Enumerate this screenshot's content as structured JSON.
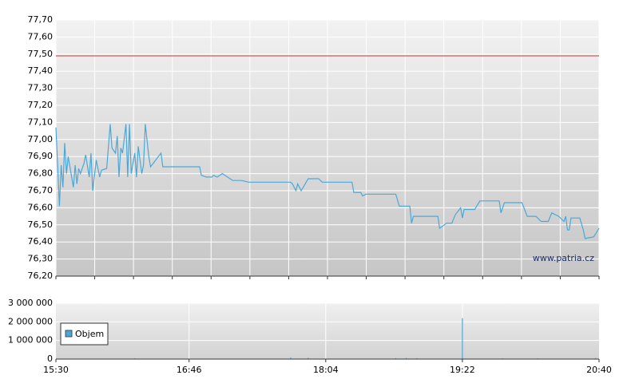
{
  "chart_data": [
    {
      "type": "line",
      "color": "#4aa8d8",
      "grid": true,
      "xlim": [
        "15:30",
        "20:40"
      ],
      "ylim": [
        76.2,
        77.7
      ],
      "yticks": [
        {
          "value": 76.2,
          "label": "76,20"
        },
        {
          "value": 76.3,
          "label": "76,30"
        },
        {
          "value": 76.4,
          "label": "76,40"
        },
        {
          "value": 76.5,
          "label": "76,50"
        },
        {
          "value": 76.6,
          "label": "76,60"
        },
        {
          "value": 76.7,
          "label": "76,70"
        },
        {
          "value": 76.8,
          "label": "76,80"
        },
        {
          "value": 76.9,
          "label": "76,90"
        },
        {
          "value": 77.0,
          "label": "77,00"
        },
        {
          "value": 77.1,
          "label": "77,10"
        },
        {
          "value": 77.2,
          "label": "77,20"
        },
        {
          "value": 77.3,
          "label": "77,30"
        },
        {
          "value": 77.4,
          "label": "77,40"
        },
        {
          "value": 77.5,
          "label": "77,50"
        },
        {
          "value": 77.6,
          "label": "77,60"
        },
        {
          "value": 77.7,
          "label": "77,70"
        }
      ],
      "reference_line": {
        "value": 77.49,
        "color": "#cc3333"
      },
      "watermark": "www.patria.cz",
      "x": [
        "15:30",
        "15:31",
        "15:32",
        "15:33",
        "15:34",
        "15:35",
        "15:36",
        "15:37",
        "15:39",
        "15:40",
        "15:41",
        "15:42",
        "15:43",
        "15:44",
        "15:46",
        "15:47",
        "15:49",
        "15:50",
        "15:51",
        "15:53",
        "15:55",
        "15:56",
        "15:59",
        "16:01",
        "16:02",
        "16:04",
        "16:05",
        "16:06",
        "16:07",
        "16:08",
        "16:10",
        "16:11",
        "16:12",
        "16:13",
        "16:15",
        "16:16",
        "16:17",
        "16:19",
        "16:20",
        "16:21",
        "16:23",
        "16:24",
        "16:27",
        "16:30",
        "16:31",
        "16:52",
        "16:53",
        "16:56",
        "16:59",
        "17:00",
        "17:02",
        "17:05",
        "17:11",
        "17:16",
        "17:20",
        "17:44",
        "17:45",
        "17:47",
        "17:48",
        "17:50",
        "17:54",
        "18:00",
        "18:02",
        "18:19",
        "18:20",
        "18:24",
        "18:25",
        "18:27",
        "18:44",
        "18:46",
        "18:52",
        "18:53",
        "18:54",
        "19:08",
        "19:09",
        "19:13",
        "19:16",
        "19:18",
        "19:21",
        "19:22",
        "19:23",
        "19:29",
        "19:32",
        "19:43",
        "19:44",
        "19:46",
        "19:56",
        "19:59",
        "20:04",
        "20:07",
        "20:11",
        "20:13",
        "20:17",
        "20:20",
        "20:21",
        "20:22",
        "20:23",
        "20:24",
        "20:29",
        "20:31",
        "20:32",
        "20:37",
        "20:40"
      ],
      "values": [
        77.07,
        76.85,
        76.61,
        76.85,
        76.72,
        76.98,
        76.8,
        76.9,
        76.78,
        76.72,
        76.85,
        76.74,
        76.83,
        76.8,
        76.86,
        76.91,
        76.78,
        76.92,
        76.7,
        76.88,
        76.78,
        76.82,
        76.83,
        77.09,
        76.95,
        76.92,
        77.02,
        76.78,
        76.95,
        76.92,
        77.09,
        76.78,
        77.09,
        76.8,
        76.92,
        76.78,
        76.96,
        76.8,
        76.85,
        77.09,
        76.9,
        76.84,
        76.88,
        76.92,
        76.84,
        76.84,
        76.79,
        76.78,
        76.78,
        76.79,
        76.78,
        76.8,
        76.76,
        76.76,
        76.75,
        76.75,
        76.74,
        76.7,
        76.74,
        76.7,
        76.77,
        76.77,
        76.75,
        76.75,
        76.69,
        76.69,
        76.67,
        76.68,
        76.68,
        76.61,
        76.61,
        76.51,
        76.55,
        76.55,
        76.48,
        76.51,
        76.51,
        76.56,
        76.6,
        76.54,
        76.59,
        76.59,
        76.64,
        76.64,
        76.57,
        76.63,
        76.63,
        76.55,
        76.55,
        76.52,
        76.52,
        76.57,
        76.55,
        76.52,
        76.55,
        76.47,
        76.47,
        76.54,
        76.54,
        76.47,
        76.42,
        76.43,
        76.48
      ]
    },
    {
      "type": "bar",
      "grid": true,
      "legend": "top-left",
      "xlim": [
        "15:30",
        "20:40"
      ],
      "xticks": [
        "15:30",
        "16:46",
        "18:04",
        "19:22",
        "20:40"
      ],
      "ylim": [
        0,
        3000000
      ],
      "yticks": [
        0,
        {
          "value": 1000000,
          "label": "1 000 000"
        },
        {
          "value": 2000000,
          "label": "2 000 000"
        },
        {
          "value": 3000000,
          "label": "3 000 000"
        }
      ],
      "x": [
        "16:15",
        "17:44",
        "17:54",
        "18:44",
        "18:50",
        "18:56",
        "19:22",
        "19:45",
        "20:05",
        "20:38"
      ],
      "series": [
        {
          "name": "Objem",
          "color": "#4aa8d8",
          "values": [
            40000,
            90000,
            70000,
            50000,
            60000,
            50000,
            2200000,
            40000,
            40000,
            60000
          ]
        }
      ]
    }
  ]
}
